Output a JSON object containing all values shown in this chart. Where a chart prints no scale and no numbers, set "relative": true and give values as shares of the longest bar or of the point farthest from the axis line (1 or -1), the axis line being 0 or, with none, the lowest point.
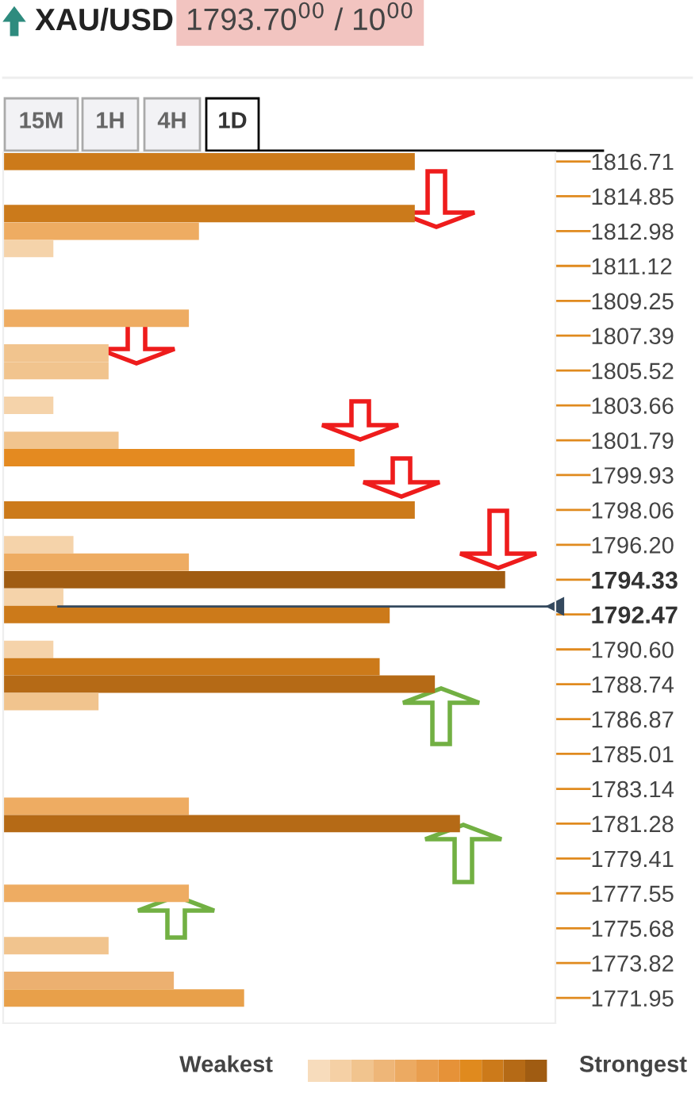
{
  "chart_data": {
    "type": "bar",
    "orientation": "horizontal",
    "relative": true,
    "title": "XAU/USD",
    "subtitle": "1793.70$^{00}$ / 10$^{00}$",
    "annotations": [
      "15M",
      "1H",
      "4H",
      "1D",
      "Weakest",
      "Strongest"
    ],
    "x": [
      1816.71,
      1813.92,
      1812.98,
      1812.05,
      1808.32,
      1806.46,
      1805.52,
      1803.66,
      1801.79,
      1800.86,
      1798.06,
      1796.2,
      1795.27,
      1794.33,
      1793.4,
      1792.47,
      1790.6,
      1789.67,
      1788.74,
      1787.81,
      1782.21,
      1781.28,
      1777.55,
      1774.75,
      1772.89,
      1771.95
    ],
    "values": [
      0.82,
      0.82,
      0.39,
      0.1,
      0.37,
      0.21,
      0.21,
      0.1,
      0.23,
      0.7,
      0.82,
      0.14,
      0.37,
      1,
      0.12,
      0.77,
      0.1,
      0.75,
      0.86,
      0.19,
      0.37,
      0.91,
      0.37,
      0.21,
      0.34,
      0.48
    ],
    "colors": [
      "#cc7a1a",
      "#cb7a1b",
      "#eeac62",
      "#f5d3aa",
      "#eeac62",
      "#f1c48e",
      "#f1c48e",
      "#f5d3aa",
      "#f1c48e",
      "#e48a20",
      "#cc7a1a",
      "#f5d3aa",
      "#eeac62",
      "#a05c12",
      "#f5d3aa",
      "#cc7a1a",
      "#f5d3aa",
      "#cc7a1a",
      "#b56a16",
      "#f1c48e",
      "#eeac62",
      "#b56a16",
      "#eeac62",
      "#f1c48e",
      "#ecb070",
      "#e8a04a"
    ],
    "ylim": [
      1770.6,
      1817.2
    ],
    "yticks": [
      1816.71,
      1814.85,
      1812.98,
      1811.12,
      1809.25,
      1807.39,
      1805.52,
      1803.66,
      1801.79,
      {
        "value": 1799.93,
        "label": "1799.93"
      },
      1798.06,
      {
        "value": 1796.2,
        "label": "1796.20"
      },
      1794.33,
      1792.47,
      {
        "value": 1790.6,
        "label": "1790.60"
      },
      1788.74,
      1786.87,
      1785.01,
      1783.14,
      1781.28,
      1779.41,
      1777.55,
      1775.68,
      1773.82,
      1771.95
    ],
    "ref_lines": [
      {
        "axis": "y",
        "value": 1792.9,
        "color": "#34495e"
      }
    ],
    "grid": false,
    "legend": false
  }
}
